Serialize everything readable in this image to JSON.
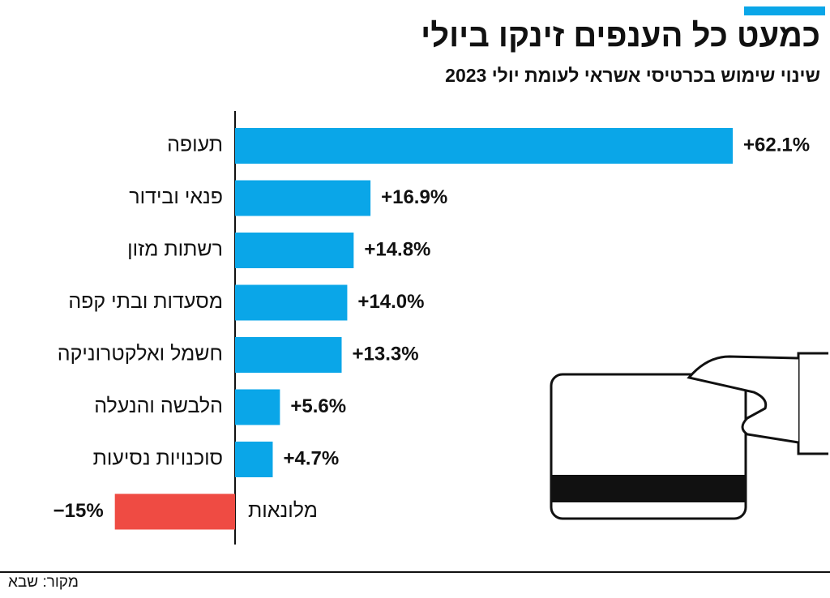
{
  "chart_data": {
    "type": "hbar",
    "title": "כמעט כל הענפים זינקו ביולי",
    "subtitle": "שינוי שימוש בכרטיסי אשראי לעומת יולי 2023",
    "source": "מקור: שבא",
    "categories": [
      "תעופה",
      "פנאי ובידור",
      "רשתות מזון",
      "מסעדות ובתי קפה",
      "חשמל ואלקטרוניקה",
      "הלבשה והנעלה",
      "סוכנויות נסיעות",
      "מלונאות"
    ],
    "values": [
      62.1,
      16.9,
      14.8,
      14.0,
      13.3,
      5.6,
      4.7,
      -15
    ],
    "value_labels": [
      "+62.1%",
      "+16.9%",
      "+14.8%",
      "+14.0%",
      "+13.3%",
      "+5.6%",
      "+4.7%",
      "−15%"
    ],
    "color": "#0aa6e8",
    "negative_color": "#ef4b43"
  }
}
